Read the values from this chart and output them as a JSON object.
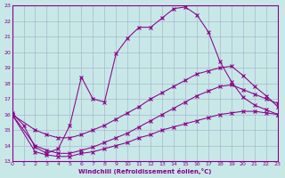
{
  "xlabel": "Windchill (Refroidissement éolien,°C)",
  "bg_color": "#c8e8e8",
  "grid_color": "#a8b8cc",
  "line_color": "#880088",
  "xlim": [
    0,
    23
  ],
  "ylim": [
    13,
    23
  ],
  "yticks": [
    13,
    14,
    15,
    16,
    17,
    18,
    19,
    20,
    21,
    22,
    23
  ],
  "xticks": [
    0,
    1,
    2,
    3,
    4,
    5,
    6,
    7,
    8,
    9,
    10,
    11,
    12,
    13,
    14,
    15,
    16,
    17,
    18,
    19,
    20,
    21,
    22,
    23
  ],
  "line1_x": [
    0,
    1,
    2,
    3,
    4,
    5,
    6,
    7,
    8,
    9,
    10,
    11,
    12,
    13,
    14,
    15,
    16,
    17,
    18,
    19,
    20,
    21,
    22,
    23
  ],
  "line1_y": [
    16.1,
    15.3,
    13.9,
    13.5,
    13.8,
    15.3,
    18.4,
    17.0,
    16.8,
    19.9,
    20.9,
    21.6,
    21.6,
    22.2,
    22.8,
    22.9,
    22.4,
    21.3,
    19.4,
    18.1,
    17.1,
    16.6,
    16.3,
    16.0
  ],
  "line2_x": [
    0,
    2,
    3,
    4,
    5,
    6,
    7,
    8,
    9,
    10,
    11,
    12,
    13,
    14,
    15,
    16,
    17,
    18,
    19,
    20,
    21,
    22,
    23
  ],
  "line2_y": [
    16.0,
    15.0,
    14.7,
    14.5,
    14.5,
    14.7,
    15.0,
    15.3,
    15.7,
    16.1,
    16.5,
    17.0,
    17.4,
    17.8,
    18.2,
    18.6,
    18.8,
    19.0,
    19.1,
    18.5,
    17.8,
    17.2,
    16.5
  ],
  "line3_x": [
    0,
    2,
    3,
    4,
    5,
    6,
    7,
    8,
    9,
    10,
    11,
    12,
    13,
    14,
    15,
    16,
    17,
    18,
    19,
    20,
    21,
    22,
    23
  ],
  "line3_y": [
    16.0,
    14.0,
    13.7,
    13.5,
    13.5,
    13.7,
    13.9,
    14.2,
    14.5,
    14.8,
    15.2,
    15.6,
    16.0,
    16.4,
    16.8,
    17.2,
    17.5,
    17.8,
    17.9,
    17.6,
    17.3,
    17.0,
    16.7
  ],
  "line4_x": [
    0,
    2,
    3,
    4,
    5,
    6,
    7,
    8,
    9,
    10,
    11,
    12,
    13,
    14,
    15,
    16,
    17,
    18,
    19,
    20,
    21,
    22,
    23
  ],
  "line4_y": [
    16.0,
    13.6,
    13.4,
    13.3,
    13.3,
    13.5,
    13.6,
    13.8,
    14.0,
    14.2,
    14.5,
    14.7,
    15.0,
    15.2,
    15.4,
    15.6,
    15.8,
    16.0,
    16.1,
    16.2,
    16.2,
    16.1,
    16.0
  ]
}
